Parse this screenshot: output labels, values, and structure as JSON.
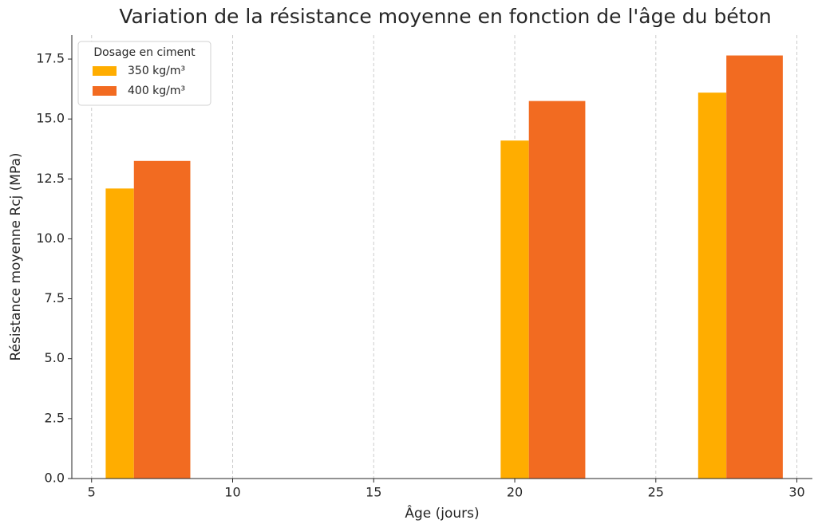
{
  "chart_data": {
    "type": "bar",
    "title": "Variation de la résistance moyenne en fonction de l'âge du béton",
    "x_label": "Âge (jours)",
    "y_label": "Résistance moyenne Rcj (MPa)",
    "legend_title": "Dosage en ciment",
    "legend": "upper left",
    "grid": "x",
    "series": [
      {
        "name": "350 kg/m³",
        "color": "#ffad00",
        "x": [
          6,
          20,
          27
        ],
        "width": 1,
        "values": [
          12.1,
          14.1,
          16.1
        ]
      },
      {
        "name": "400 kg/m³",
        "color": "#f26b21",
        "x": [
          7.5,
          21.5,
          28.5
        ],
        "width": 2,
        "values": [
          13.25,
          15.75,
          17.65
        ]
      }
    ],
    "xlim": [
      4.3,
      30.55
    ],
    "xticks": [
      5,
      10,
      15,
      20,
      25,
      30
    ],
    "ylim": [
      0,
      18.5
    ],
    "yticks": [
      {
        "value": 0,
        "label": "0.0"
      },
      {
        "value": 2.5,
        "label": "2.5"
      },
      {
        "value": 5,
        "label": "5.0"
      },
      {
        "value": 7.5,
        "label": "7.5"
      },
      {
        "value": 10,
        "label": "10.0"
      },
      {
        "value": 12.5,
        "label": "12.5"
      },
      {
        "value": 15,
        "label": "15.0"
      },
      {
        "value": 17.5,
        "label": "17.5"
      }
    ]
  }
}
